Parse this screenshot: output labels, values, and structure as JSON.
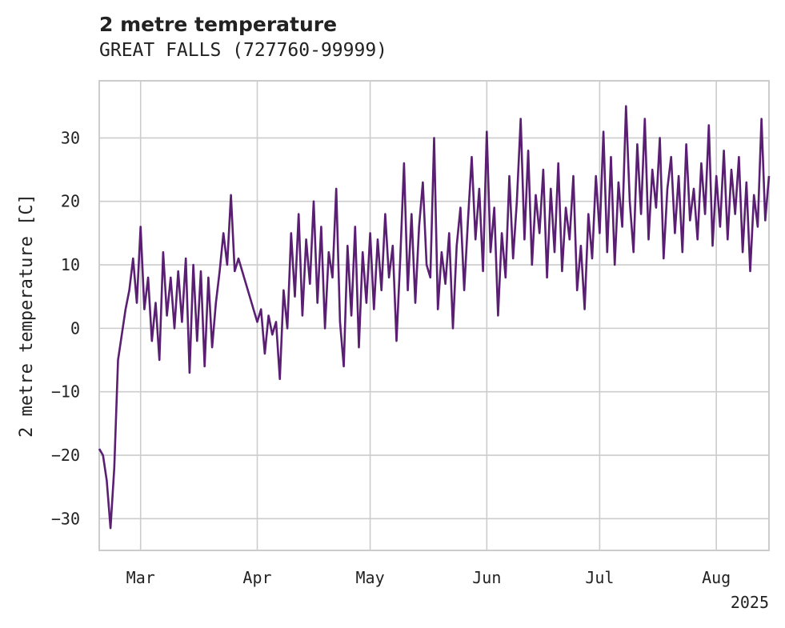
{
  "chart_data": {
    "type": "line",
    "title": "2 metre temperature",
    "subtitle": "GREAT FALLS (727760-99999)",
    "ylabel": "2 metre temperature [C]",
    "xlabel": "",
    "year_label": "2025",
    "xlim": [
      "2025-02-18",
      "2025-08-15"
    ],
    "ylim": [
      -35,
      39
    ],
    "y_ticks": [
      -30,
      -20,
      -10,
      0,
      10,
      20,
      30
    ],
    "y_tick_labels": [
      "−30",
      "−20",
      "−10",
      "0",
      "10",
      "20",
      "30"
    ],
    "x_ticks": [
      "2025-03-01",
      "2025-04-01",
      "2025-05-01",
      "2025-06-01",
      "2025-07-01",
      "2025-08-01"
    ],
    "x_tick_labels": [
      "Mar",
      "Apr",
      "May",
      "Jun",
      "Jul",
      "Aug"
    ],
    "grid": true,
    "series": [
      {
        "color": "#5a1f73",
        "points": [
          [
            "2025-02-18",
            -19
          ],
          [
            "2025-02-19",
            -20
          ],
          [
            "2025-02-20",
            -24
          ],
          [
            "2025-02-21",
            -31.5
          ],
          [
            "2025-02-22",
            -22
          ],
          [
            "2025-02-23",
            -5
          ],
          [
            "2025-02-24",
            -1
          ],
          [
            "2025-02-25",
            3
          ],
          [
            "2025-02-26",
            6
          ],
          [
            "2025-02-27",
            11
          ],
          [
            "2025-02-28",
            4
          ],
          [
            "2025-03-01",
            16
          ],
          [
            "2025-03-02",
            3
          ],
          [
            "2025-03-03",
            8
          ],
          [
            "2025-03-04",
            -2
          ],
          [
            "2025-03-05",
            4
          ],
          [
            "2025-03-06",
            -5
          ],
          [
            "2025-03-07",
            12
          ],
          [
            "2025-03-08",
            2
          ],
          [
            "2025-03-09",
            8
          ],
          [
            "2025-03-10",
            0
          ],
          [
            "2025-03-11",
            9
          ],
          [
            "2025-03-12",
            1
          ],
          [
            "2025-03-13",
            11
          ],
          [
            "2025-03-14",
            -7
          ],
          [
            "2025-03-15",
            10
          ],
          [
            "2025-03-16",
            -2
          ],
          [
            "2025-03-17",
            9
          ],
          [
            "2025-03-18",
            -6
          ],
          [
            "2025-03-19",
            8
          ],
          [
            "2025-03-20",
            -3
          ],
          [
            "2025-03-21",
            4
          ],
          [
            "2025-03-22",
            9
          ],
          [
            "2025-03-23",
            15
          ],
          [
            "2025-03-24",
            10
          ],
          [
            "2025-03-25",
            21
          ],
          [
            "2025-03-26",
            9
          ],
          [
            "2025-03-27",
            11
          ],
          [
            "2025-03-31",
            3
          ],
          [
            "2025-04-01",
            1
          ],
          [
            "2025-04-02",
            3
          ],
          [
            "2025-04-03",
            -4
          ],
          [
            "2025-04-04",
            2
          ],
          [
            "2025-04-05",
            -1
          ],
          [
            "2025-04-06",
            1
          ],
          [
            "2025-04-07",
            -8
          ],
          [
            "2025-04-08",
            6
          ],
          [
            "2025-04-09",
            0
          ],
          [
            "2025-04-10",
            15
          ],
          [
            "2025-04-11",
            5
          ],
          [
            "2025-04-12",
            18
          ],
          [
            "2025-04-13",
            2
          ],
          [
            "2025-04-14",
            14
          ],
          [
            "2025-04-15",
            7
          ],
          [
            "2025-04-16",
            20
          ],
          [
            "2025-04-17",
            4
          ],
          [
            "2025-04-18",
            16
          ],
          [
            "2025-04-19",
            0
          ],
          [
            "2025-04-20",
            12
          ],
          [
            "2025-04-21",
            8
          ],
          [
            "2025-04-22",
            22
          ],
          [
            "2025-04-23",
            1
          ],
          [
            "2025-04-24",
            -6
          ],
          [
            "2025-04-25",
            13
          ],
          [
            "2025-04-26",
            2
          ],
          [
            "2025-04-27",
            16
          ],
          [
            "2025-04-28",
            -3
          ],
          [
            "2025-04-29",
            12
          ],
          [
            "2025-04-30",
            4
          ],
          [
            "2025-05-01",
            15
          ],
          [
            "2025-05-02",
            3
          ],
          [
            "2025-05-03",
            14
          ],
          [
            "2025-05-04",
            6
          ],
          [
            "2025-05-05",
            18
          ],
          [
            "2025-05-06",
            8
          ],
          [
            "2025-05-07",
            13
          ],
          [
            "2025-05-08",
            -2
          ],
          [
            "2025-05-09",
            11
          ],
          [
            "2025-05-10",
            26
          ],
          [
            "2025-05-11",
            6
          ],
          [
            "2025-05-12",
            18
          ],
          [
            "2025-05-13",
            4
          ],
          [
            "2025-05-14",
            16
          ],
          [
            "2025-05-15",
            23
          ],
          [
            "2025-05-16",
            10
          ],
          [
            "2025-05-17",
            8
          ],
          [
            "2025-05-18",
            30
          ],
          [
            "2025-05-19",
            3
          ],
          [
            "2025-05-20",
            12
          ],
          [
            "2025-05-21",
            7
          ],
          [
            "2025-05-22",
            15
          ],
          [
            "2025-05-23",
            0
          ],
          [
            "2025-05-24",
            13
          ],
          [
            "2025-05-25",
            19
          ],
          [
            "2025-05-26",
            6
          ],
          [
            "2025-05-27",
            17
          ],
          [
            "2025-05-28",
            27
          ],
          [
            "2025-05-29",
            14
          ],
          [
            "2025-05-30",
            22
          ],
          [
            "2025-05-31",
            9
          ],
          [
            "2025-06-01",
            31
          ],
          [
            "2025-06-02",
            12
          ],
          [
            "2025-06-03",
            19
          ],
          [
            "2025-06-04",
            2
          ],
          [
            "2025-06-05",
            15
          ],
          [
            "2025-06-06",
            8
          ],
          [
            "2025-06-07",
            24
          ],
          [
            "2025-06-08",
            11
          ],
          [
            "2025-06-09",
            20
          ],
          [
            "2025-06-10",
            33
          ],
          [
            "2025-06-11",
            14
          ],
          [
            "2025-06-12",
            28
          ],
          [
            "2025-06-13",
            10
          ],
          [
            "2025-06-14",
            21
          ],
          [
            "2025-06-15",
            15
          ],
          [
            "2025-06-16",
            25
          ],
          [
            "2025-06-17",
            8
          ],
          [
            "2025-06-18",
            22
          ],
          [
            "2025-06-19",
            12
          ],
          [
            "2025-06-20",
            26
          ],
          [
            "2025-06-21",
            9
          ],
          [
            "2025-06-22",
            19
          ],
          [
            "2025-06-23",
            14
          ],
          [
            "2025-06-24",
            24
          ],
          [
            "2025-06-25",
            6
          ],
          [
            "2025-06-26",
            13
          ],
          [
            "2025-06-27",
            3
          ],
          [
            "2025-06-28",
            18
          ],
          [
            "2025-06-29",
            11
          ],
          [
            "2025-06-30",
            24
          ],
          [
            "2025-07-01",
            15
          ],
          [
            "2025-07-02",
            31
          ],
          [
            "2025-07-03",
            12
          ],
          [
            "2025-07-04",
            27
          ],
          [
            "2025-07-05",
            10
          ],
          [
            "2025-07-06",
            23
          ],
          [
            "2025-07-07",
            16
          ],
          [
            "2025-07-08",
            35
          ],
          [
            "2025-07-09",
            20
          ],
          [
            "2025-07-10",
            12
          ],
          [
            "2025-07-11",
            29
          ],
          [
            "2025-07-12",
            18
          ],
          [
            "2025-07-13",
            33
          ],
          [
            "2025-07-14",
            14
          ],
          [
            "2025-07-15",
            25
          ],
          [
            "2025-07-16",
            19
          ],
          [
            "2025-07-17",
            30
          ],
          [
            "2025-07-18",
            11
          ],
          [
            "2025-07-19",
            22
          ],
          [
            "2025-07-20",
            27
          ],
          [
            "2025-07-21",
            15
          ],
          [
            "2025-07-22",
            24
          ],
          [
            "2025-07-23",
            12
          ],
          [
            "2025-07-24",
            29
          ],
          [
            "2025-07-25",
            17
          ],
          [
            "2025-07-26",
            22
          ],
          [
            "2025-07-27",
            14
          ],
          [
            "2025-07-28",
            26
          ],
          [
            "2025-07-29",
            18
          ],
          [
            "2025-07-30",
            32
          ],
          [
            "2025-07-31",
            13
          ],
          [
            "2025-08-01",
            24
          ],
          [
            "2025-08-02",
            16
          ],
          [
            "2025-08-03",
            28
          ],
          [
            "2025-08-04",
            14
          ],
          [
            "2025-08-05",
            25
          ],
          [
            "2025-08-06",
            18
          ],
          [
            "2025-08-07",
            27
          ],
          [
            "2025-08-08",
            12
          ],
          [
            "2025-08-09",
            23
          ],
          [
            "2025-08-10",
            9
          ],
          [
            "2025-08-11",
            21
          ],
          [
            "2025-08-12",
            16
          ],
          [
            "2025-08-13",
            33
          ],
          [
            "2025-08-14",
            17
          ],
          [
            "2025-08-15",
            24
          ]
        ]
      }
    ]
  }
}
